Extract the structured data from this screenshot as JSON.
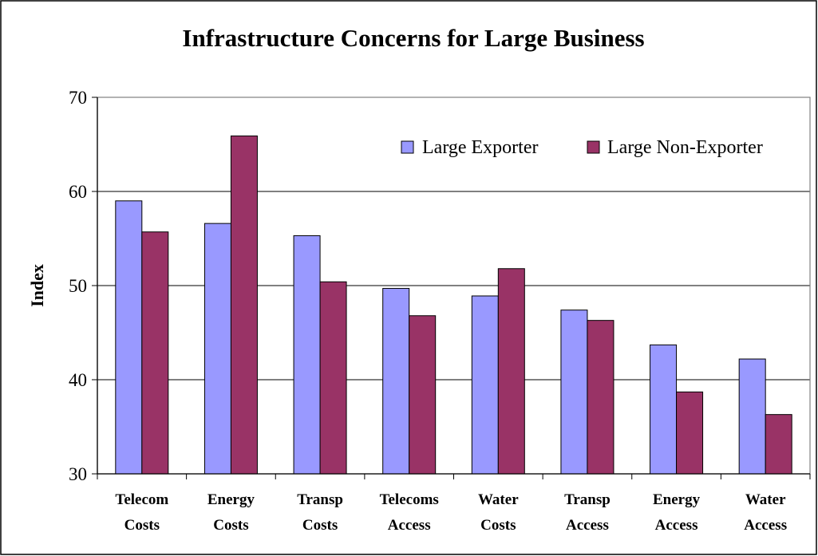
{
  "chart_data": {
    "type": "bar",
    "title": "Infrastructure Concerns for Large Business",
    "xlabel": "",
    "ylabel": "Index",
    "ylim": [
      30,
      70
    ],
    "yticks": [
      30,
      40,
      50,
      60,
      70
    ],
    "grid": true,
    "legend_position": "top-right",
    "categories": [
      [
        "Telecom",
        "Costs"
      ],
      [
        "Energy",
        "Costs"
      ],
      [
        "Transp",
        "Costs"
      ],
      [
        "Telecoms",
        "Access"
      ],
      [
        "Water",
        "Costs"
      ],
      [
        "Transp",
        "Access"
      ],
      [
        "Energy",
        "Access"
      ],
      [
        "Water",
        "Access"
      ]
    ],
    "series": [
      {
        "name": "Large Exporter",
        "color": "#9999ff",
        "values": [
          59.0,
          56.6,
          55.3,
          49.7,
          48.9,
          47.4,
          43.7,
          42.2
        ]
      },
      {
        "name": "Large Non-Exporter",
        "color": "#993366",
        "values": [
          55.7,
          65.9,
          50.4,
          46.8,
          51.8,
          46.3,
          38.7,
          36.3
        ]
      }
    ]
  }
}
